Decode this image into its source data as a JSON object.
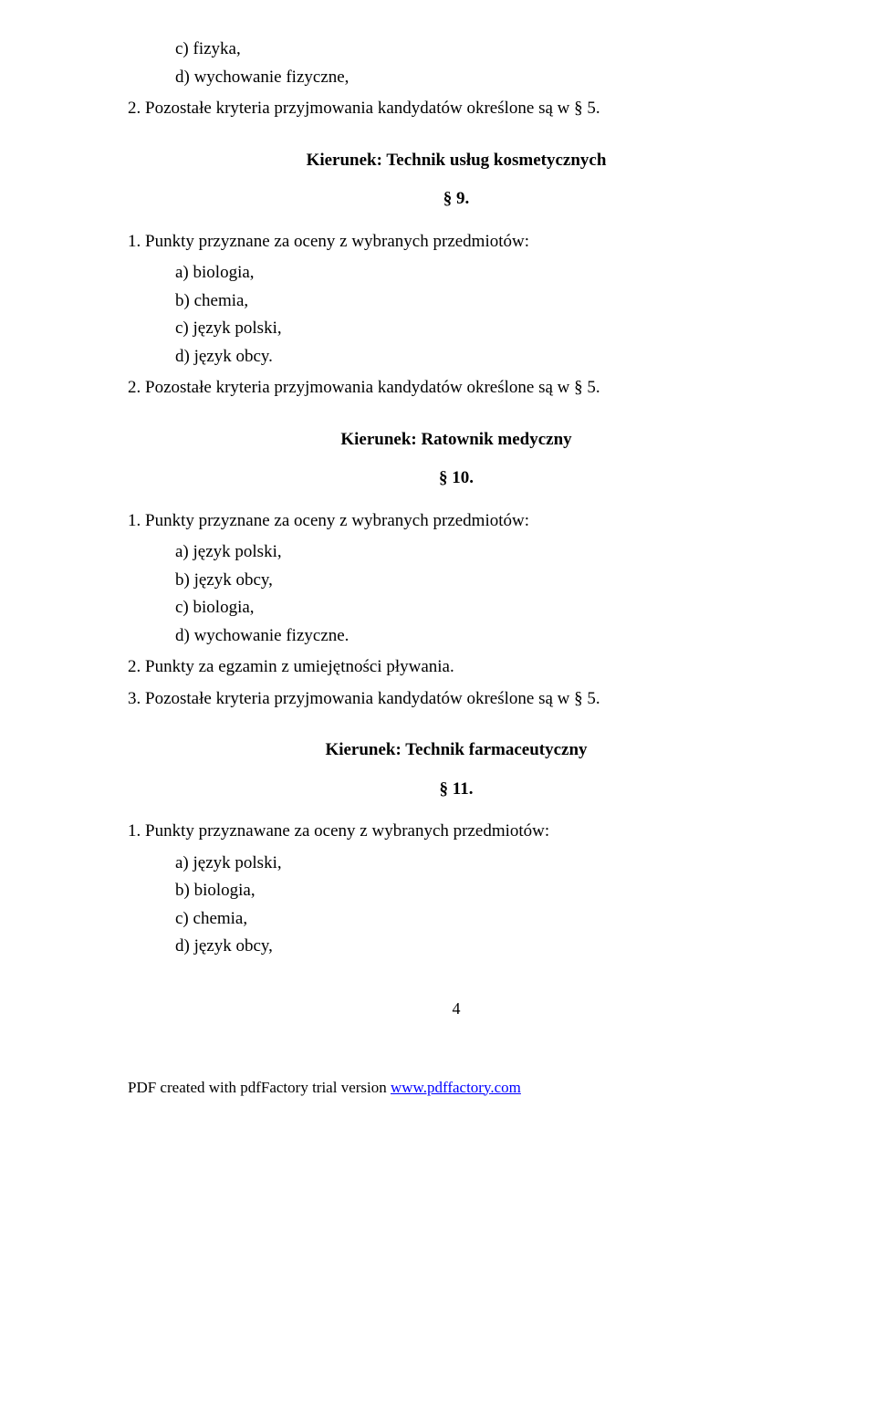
{
  "top_sublist": {
    "c": "c)  fizyka,",
    "d": "d)  wychowanie fizyczne,"
  },
  "top_line": "2. Pozostałe kryteria przyjmowania kandydatów określone są  w § 5.",
  "s9": {
    "heading": "Kierunek: Technik usług kosmetycznych",
    "num": "§ 9.",
    "line1": "1. Punkty przyznane za oceny z wybranych przedmiotów:",
    "a": "a)  biologia,",
    "b": "b)  chemia,",
    "c": "c)  język polski,",
    "d": "d)  język obcy.",
    "line2": "2. Pozostałe kryteria przyjmowania kandydatów określone są  w § 5."
  },
  "s10": {
    "heading": "Kierunek: Ratownik medyczny",
    "num": "§ 10.",
    "line1": "1. Punkty przyznane za oceny z wybranych przedmiotów:",
    "a": "a)  język polski,",
    "b": "b)  język obcy,",
    "c": "c)  biologia,",
    "d": "d)  wychowanie fizyczne.",
    "line2": "2. Punkty za egzamin z umiejętności pływania.",
    "line3": "3. Pozostałe kryteria przyjmowania kandydatów określone są  w § 5."
  },
  "s11": {
    "heading": "Kierunek: Technik farmaceutyczny",
    "num": "§ 11.",
    "line1": "1. Punkty przyznawane za oceny z wybranych przedmiotów:",
    "a": "a)   język polski,",
    "b": "b)  biologia,",
    "c": "c)  chemia,",
    "d": "d)  język obcy,"
  },
  "page_number": "4",
  "footer": {
    "prefix": "PDF created with pdfFactory trial version ",
    "link_text": "www.pdffactory.com"
  }
}
